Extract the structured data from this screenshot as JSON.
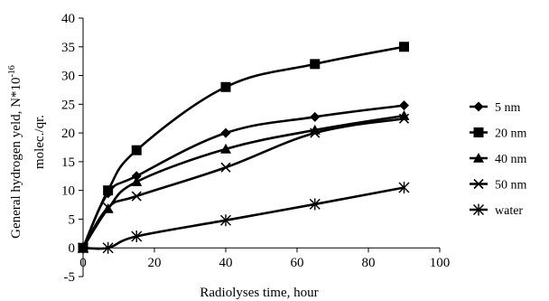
{
  "chart_data": {
    "type": "line",
    "xlabel": "Radiolyses time, hour",
    "ylabel_line1": "General hydrogen yeld, N*10",
    "ylabel_exp": "-16",
    "ylabel_line2": "molec./qr.",
    "xlim": [
      0,
      100
    ],
    "ylim": [
      -5,
      40
    ],
    "xticks": [
      0,
      20,
      40,
      60,
      80,
      100
    ],
    "yticks": [
      -5,
      0,
      5,
      10,
      15,
      20,
      25,
      30,
      35,
      40
    ],
    "xtick_labels": [
      "0",
      "20",
      "40",
      "60",
      "80",
      "100"
    ],
    "ytick_labels": [
      "-5",
      "0",
      "5",
      "10",
      "15",
      "20",
      "25",
      "30",
      "35",
      "40"
    ],
    "grid": false,
    "legend": "right",
    "series": [
      {
        "name": "5 nm",
        "marker": "diamond",
        "points": [
          [
            0,
            0
          ],
          [
            7,
            9.5
          ],
          [
            15,
            12.5
          ],
          [
            40,
            20
          ],
          [
            65,
            22.8
          ],
          [
            90,
            24.8
          ]
        ]
      },
      {
        "name": "20 nm",
        "marker": "square",
        "points": [
          [
            0,
            0
          ],
          [
            7,
            10
          ],
          [
            15,
            17
          ],
          [
            40,
            28
          ],
          [
            65,
            32
          ],
          [
            90,
            35
          ]
        ]
      },
      {
        "name": "40 nm",
        "marker": "triangle",
        "points": [
          [
            0,
            0
          ],
          [
            7,
            6.8
          ],
          [
            15,
            11.5
          ],
          [
            40,
            17.2
          ],
          [
            65,
            20.5
          ],
          [
            90,
            23
          ]
        ]
      },
      {
        "name": "50 nm",
        "marker": "x",
        "points": [
          [
            0,
            0
          ],
          [
            7,
            7
          ],
          [
            15,
            9
          ],
          [
            40,
            14
          ],
          [
            65,
            20
          ],
          [
            90,
            22.5
          ]
        ]
      },
      {
        "name": "water",
        "marker": "asterisk",
        "points": [
          [
            0,
            0
          ],
          [
            7,
            0
          ],
          [
            15,
            2
          ],
          [
            40,
            4.8
          ],
          [
            65,
            7.6
          ],
          [
            90,
            10.5
          ]
        ]
      }
    ]
  }
}
